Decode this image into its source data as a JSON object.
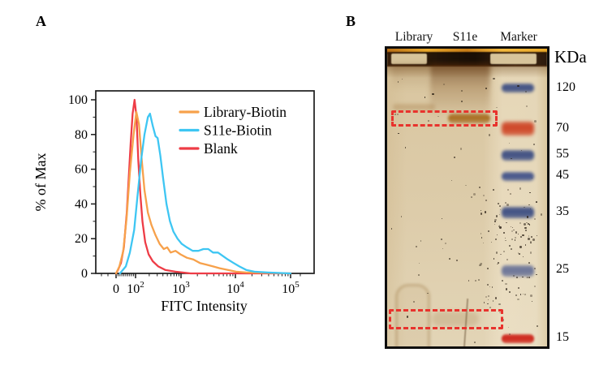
{
  "figure": {
    "panel_a_label": "A",
    "panel_b_label": "B"
  },
  "chart_data": {
    "type": "line",
    "subtype": "flow-cytometry-histogram",
    "title": "",
    "xlabel": "FITC Intensity",
    "ylabel": "% of Max",
    "x_scale": "biexponential-log",
    "x_tick_values": [
      0,
      100,
      1000,
      10000,
      100000
    ],
    "x_tick_labels": [
      "0",
      "10^2",
      "10^3",
      "10^4",
      "10^5"
    ],
    "y_ticks": [
      0,
      20,
      40,
      60,
      80,
      100
    ],
    "ylim": [
      0,
      100
    ],
    "grid": false,
    "legend_position": "inside-top-right",
    "axis_color": "#1c1c1c",
    "series": [
      {
        "name": "Library-Biotin",
        "color": "#F7A14B",
        "points": [
          [
            0,
            0
          ],
          [
            17,
            4
          ],
          [
            37,
            13
          ],
          [
            54,
            32
          ],
          [
            71,
            58
          ],
          [
            90,
            80
          ],
          [
            104,
            93
          ],
          [
            119,
            86
          ],
          [
            137,
            65
          ],
          [
            157,
            48
          ],
          [
            187,
            35
          ],
          [
            223,
            28
          ],
          [
            275,
            22
          ],
          [
            339,
            17
          ],
          [
            419,
            14
          ],
          [
            497,
            15
          ],
          [
            590,
            12
          ],
          [
            757,
            13
          ],
          [
            970,
            11
          ],
          [
            1280,
            9
          ],
          [
            1690,
            8
          ],
          [
            2230,
            6
          ],
          [
            2940,
            5
          ],
          [
            3880,
            4
          ],
          [
            5130,
            3
          ],
          [
            7280,
            2
          ],
          [
            10300,
            1
          ],
          [
            15700,
            0.5
          ],
          [
            100000,
            0
          ]
        ]
      },
      {
        "name": "S11e-Biotin",
        "color": "#3EC6F3",
        "points": [
          [
            20,
            0
          ],
          [
            50,
            4
          ],
          [
            71,
            12
          ],
          [
            93,
            25
          ],
          [
            111,
            45
          ],
          [
            132,
            65
          ],
          [
            157,
            80
          ],
          [
            187,
            90
          ],
          [
            208,
            92
          ],
          [
            239,
            85
          ],
          [
            275,
            79
          ],
          [
            306,
            78
          ],
          [
            351,
            68
          ],
          [
            403,
            55
          ],
          [
            480,
            40
          ],
          [
            572,
            30
          ],
          [
            681,
            24
          ],
          [
            837,
            20
          ],
          [
            1030,
            17
          ],
          [
            1280,
            15
          ],
          [
            1640,
            13
          ],
          [
            2090,
            13
          ],
          [
            2580,
            14
          ],
          [
            3170,
            14
          ],
          [
            3890,
            12
          ],
          [
            4790,
            12
          ],
          [
            5900,
            10
          ],
          [
            7280,
            8
          ],
          [
            9280,
            6
          ],
          [
            11800,
            4
          ],
          [
            15700,
            2
          ],
          [
            22100,
            1
          ],
          [
            38700,
            0.5
          ],
          [
            100000,
            0
          ]
        ]
      },
      {
        "name": "Blank",
        "color": "#EE3C46",
        "points": [
          [
            0,
            0
          ],
          [
            10,
            2
          ],
          [
            25,
            6
          ],
          [
            40,
            15
          ],
          [
            55,
            35
          ],
          [
            65,
            55
          ],
          [
            75,
            75
          ],
          [
            85,
            92
          ],
          [
            95,
            100
          ],
          [
            105,
            90
          ],
          [
            115,
            65
          ],
          [
            128,
            45
          ],
          [
            142,
            30
          ],
          [
            163,
            18
          ],
          [
            194,
            11
          ],
          [
            239,
            7
          ],
          [
            316,
            4
          ],
          [
            448,
            2
          ],
          [
            757,
            1
          ],
          [
            1500,
            0
          ],
          [
            100000,
            0
          ]
        ]
      }
    ]
  },
  "gel": {
    "lane_labels": [
      "Library",
      "S11e",
      "Marker"
    ],
    "unit_label": "KDa",
    "ladder": [
      {
        "kda": "120",
        "color": "#3E4F83"
      },
      {
        "kda": "70",
        "color": "#CE4526"
      },
      {
        "kda": "55",
        "color": "#3E4F83"
      },
      {
        "kda": "45",
        "color": "#42538a"
      },
      {
        "kda": "35",
        "color": "#3E4F83"
      },
      {
        "kda": "25",
        "color": "#4B5A8E"
      },
      {
        "kda": "15",
        "color": "#CE261B"
      }
    ],
    "highlight_color": "#E8332D",
    "highlighted_regions": [
      {
        "lanes": "Library + S11e",
        "position": "just above 70 KDa marker"
      },
      {
        "lanes": "Library + S11e",
        "position": "just above 15 KDa marker"
      }
    ],
    "sample_band": {
      "lane": "S11e",
      "location": "inside upper dashed box"
    }
  }
}
